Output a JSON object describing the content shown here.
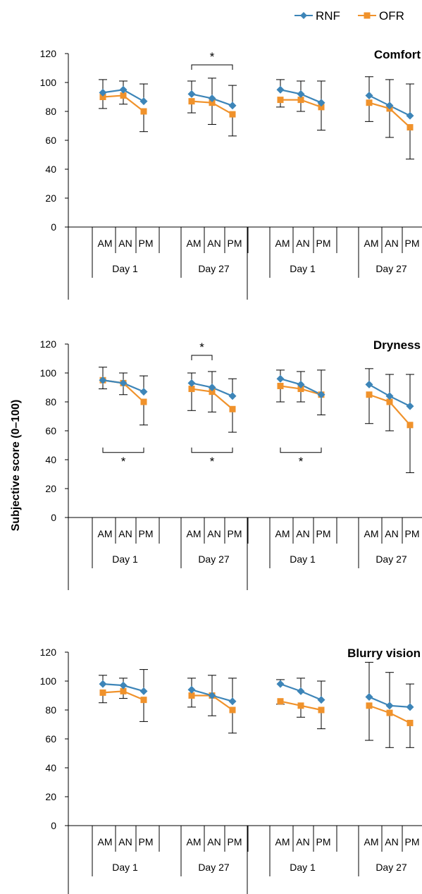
{
  "figure": {
    "ylabel": "Subjective score (0–100)",
    "legend": {
      "placement": "top-right",
      "items": [
        {
          "name": "RNF",
          "color": "#3d85b8",
          "marker": "diamond"
        },
        {
          "name": "OFR",
          "color": "#f0922b",
          "marker": "square"
        }
      ]
    },
    "colors": {
      "rnf": "#3d85b8",
      "ofr": "#f0922b",
      "axis": "#000000"
    }
  },
  "chart_data": [
    {
      "type": "line",
      "title": "Comfort",
      "ylim": [
        0,
        120
      ],
      "yticks": [
        0,
        20,
        40,
        60,
        80,
        100,
        120
      ],
      "groups": [
        {
          "label": "Day 1",
          "times": [
            "AM",
            "AN",
            "PM"
          ]
        },
        {
          "label": "Day 27",
          "times": [
            "AM",
            "AN",
            "PM"
          ]
        },
        {
          "label": "Day 1",
          "times": [
            "AM",
            "AN",
            "PM"
          ]
        },
        {
          "label": "Day 27",
          "times": [
            "AM",
            "AN",
            "PM"
          ]
        }
      ],
      "series": [
        {
          "name": "RNF",
          "values": [
            [
              93,
              95,
              87
            ],
            [
              92,
              89,
              84
            ],
            [
              95,
              92,
              86
            ],
            [
              91,
              84,
              77
            ]
          ],
          "errors_upper": [
            [
              102,
              101,
              99
            ],
            [
              101,
              103,
              98
            ],
            [
              102,
              101,
              101
            ],
            [
              104,
              102,
              99
            ]
          ]
        },
        {
          "name": "OFR",
          "values": [
            [
              90,
              91,
              80
            ],
            [
              87,
              86,
              78
            ],
            [
              88,
              88,
              83
            ],
            [
              86,
              82,
              69
            ]
          ],
          "errors_lower": [
            [
              82,
              85,
              66
            ],
            [
              79,
              71,
              63
            ],
            [
              83,
              80,
              67
            ],
            [
              73,
              62,
              47
            ]
          ]
        }
      ],
      "significance": [
        {
          "position": "above",
          "group": 1,
          "from": 0,
          "to": 2,
          "label": "*"
        }
      ]
    },
    {
      "type": "line",
      "title": "Dryness",
      "ylim": [
        0,
        120
      ],
      "yticks": [
        0,
        20,
        40,
        60,
        80,
        100,
        120
      ],
      "groups": [
        {
          "label": "Day 1",
          "times": [
            "AM",
            "AN",
            "PM"
          ]
        },
        {
          "label": "Day 27",
          "times": [
            "AM",
            "AN",
            "PM"
          ]
        },
        {
          "label": "Day 1",
          "times": [
            "AM",
            "AN",
            "PM"
          ]
        },
        {
          "label": "Day 27",
          "times": [
            "AM",
            "AN",
            "PM"
          ]
        }
      ],
      "series": [
        {
          "name": "RNF",
          "values": [
            [
              95,
              93,
              87
            ],
            [
              93,
              90,
              84
            ],
            [
              96,
              92,
              85
            ],
            [
              92,
              84,
              77
            ]
          ],
          "errors_upper": [
            [
              104,
              100,
              98
            ],
            [
              100,
              101,
              96
            ],
            [
              102,
              101,
              102
            ],
            [
              103,
              99,
              99
            ]
          ]
        },
        {
          "name": "OFR",
          "values": [
            [
              95,
              93,
              80
            ],
            [
              89,
              87,
              75
            ],
            [
              91,
              89,
              85
            ],
            [
              85,
              80,
              64
            ]
          ],
          "errors_lower": [
            [
              89,
              85,
              64
            ],
            [
              74,
              73,
              59
            ],
            [
              80,
              80,
              71
            ],
            [
              65,
              60,
              31
            ]
          ]
        }
      ],
      "significance": [
        {
          "position": "above",
          "group": 1,
          "from": 0,
          "to": 1,
          "label": "*"
        },
        {
          "position": "below",
          "group": 0,
          "from": 0,
          "to": 2,
          "label": "*"
        },
        {
          "position": "below",
          "group": 1,
          "from": 0,
          "to": 2,
          "label": "*"
        },
        {
          "position": "below",
          "group": 2,
          "from": 0,
          "to": 2,
          "label": "*"
        }
      ]
    },
    {
      "type": "line",
      "title": "Blurry vision",
      "ylim": [
        0,
        120
      ],
      "yticks": [
        0,
        20,
        40,
        60,
        80,
        100,
        120
      ],
      "groups": [
        {
          "label": "Day 1",
          "times": [
            "AM",
            "AN",
            "PM"
          ]
        },
        {
          "label": "Day 27",
          "times": [
            "AM",
            "AN",
            "PM"
          ]
        },
        {
          "label": "Day 1",
          "times": [
            "AM",
            "AN",
            "PM"
          ]
        },
        {
          "label": "Day 27",
          "times": [
            "AM",
            "AN",
            "PM"
          ]
        }
      ],
      "series": [
        {
          "name": "RNF",
          "values": [
            [
              98,
              97,
              93
            ],
            [
              94,
              90,
              86
            ],
            [
              98,
              93,
              87
            ],
            [
              89,
              83,
              82
            ]
          ],
          "errors_upper": [
            [
              104,
              102,
              108
            ],
            [
              102,
              104,
              102
            ],
            [
              101,
              102,
              100
            ],
            [
              113,
              106,
              98
            ]
          ]
        },
        {
          "name": "OFR",
          "values": [
            [
              92,
              93,
              87
            ],
            [
              90,
              90,
              80
            ],
            [
              86,
              83,
              80
            ],
            [
              83,
              78,
              71
            ]
          ],
          "errors_lower": [
            [
              85,
              88,
              72
            ],
            [
              82,
              76,
              64
            ],
            [
              84,
              75,
              67
            ],
            [
              59,
              54,
              54
            ]
          ]
        }
      ],
      "significance": []
    }
  ]
}
